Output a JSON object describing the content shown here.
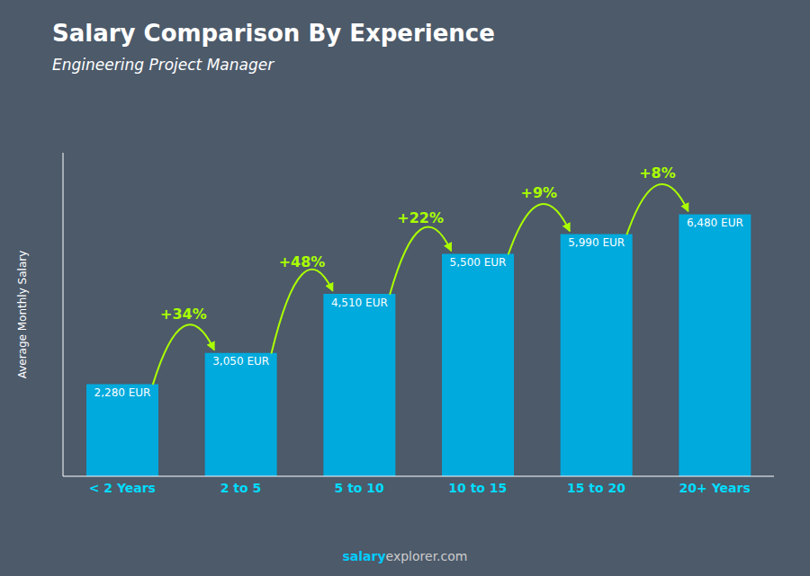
{
  "chart_data": {
    "type": "bar",
    "title": "Salary Comparison By Experience",
    "subtitle": "Engineering Project Manager",
    "ylabel": "Average Monthly Salary",
    "categories": [
      "< 2 Years",
      "2 to 5",
      "5 to 10",
      "10 to 15",
      "15 to 20",
      "20+ Years"
    ],
    "values": [
      2280,
      3050,
      4510,
      5500,
      5990,
      6480
    ],
    "value_labels": [
      "2,280 EUR",
      "3,050 EUR",
      "4,510 EUR",
      "5,500 EUR",
      "5,990 EUR",
      "6,480 EUR"
    ],
    "data_labels": true,
    "change_labels": [
      "+34%",
      "+48%",
      "+22%",
      "+9%",
      "+8%"
    ],
    "annotations": [
      "salary",
      "explorer.com"
    ],
    "ylim": [
      0,
      8000
    ],
    "tick_labels": "x",
    "color": "#00aadd",
    "change_color": "#aaff00",
    "tick_color": "#00ddff",
    "text_color": "#ffffff",
    "background_color": "#4c5a6a",
    "annotation_colors": [
      "#00ccff",
      "#cccccc"
    ]
  }
}
